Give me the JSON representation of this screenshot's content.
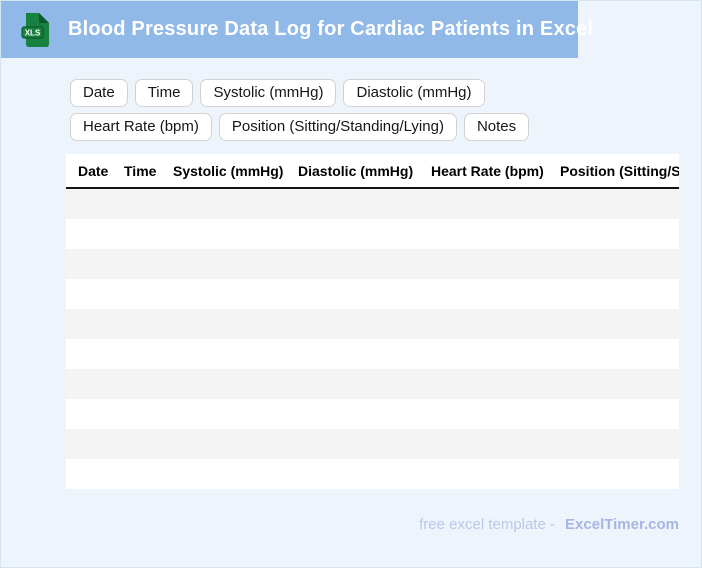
{
  "colors": {
    "header_bg": "#90b9e8",
    "page_bg": "#edf4fc",
    "icon_green": "#17813f",
    "icon_green_dark": "#0b5b2d",
    "row_stripe": "#f5f4f4",
    "header_rule": "#141414",
    "chip_border": "#d2d2d2",
    "footer_text": "#bdc7ea",
    "footer_brand": "#a8b6e2"
  },
  "header": {
    "title": "Blood Pressure Data Log for Cardiac Patients in Excel",
    "file_icon_label": "XLS"
  },
  "chips": [
    "Date",
    "Time",
    "Systolic (mmHg)",
    "Diastolic (mmHg)",
    "Heart Rate (bpm)",
    "Position (Sitting/Standing/Lying)",
    "Notes"
  ],
  "table": {
    "columns": [
      "Date",
      "Time",
      "Systolic (mmHg)",
      "Diastolic (mmHg)",
      "Heart Rate (bpm)",
      "Position (Sitting/Standing/Lying)"
    ],
    "empty_row_count": 10
  },
  "footer": {
    "label": "free excel template -",
    "brand": "ExcelTimer.com"
  }
}
